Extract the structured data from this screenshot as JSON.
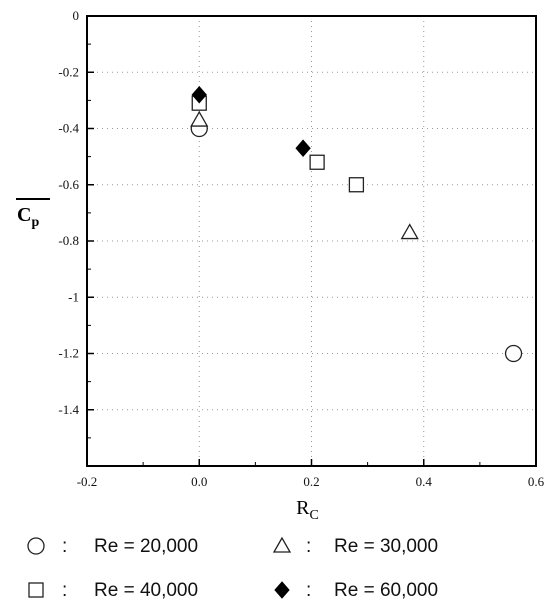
{
  "chart_data": {
    "type": "scatter",
    "xlabel": "R",
    "xlabel_sub": "C",
    "ylabel": "C",
    "ylabel_sub": "p",
    "xlim": [
      -0.2,
      0.6
    ],
    "ylim": [
      -1.6,
      0
    ],
    "x_ticks": [
      -0.2,
      0.0,
      0.2,
      0.4,
      0.6
    ],
    "x_tick_labels": [
      "-0.2",
      "0.0",
      "0.2",
      "0.4",
      "0.6"
    ],
    "y_ticks": [
      0,
      -0.2,
      -0.4,
      -0.6,
      -0.8,
      -1,
      -1.2,
      -1.4
    ],
    "y_tick_labels": [
      "0",
      "-0.2",
      "-0.4",
      "-0.6",
      "-0.8",
      "-1",
      "-1.2",
      "-1.4"
    ],
    "grid": true,
    "legend_position": "bottom",
    "series": [
      {
        "name": "Re = 20,000",
        "marker": "circle",
        "x": [
          0.0,
          0.56
        ],
        "y": [
          -0.4,
          -1.2
        ]
      },
      {
        "name": "Re = 30,000",
        "marker": "triangle",
        "x": [
          0.0,
          0.375
        ],
        "y": [
          -0.37,
          -0.77
        ]
      },
      {
        "name": "Re = 40,000",
        "marker": "square",
        "x": [
          0.0,
          0.21,
          0.28
        ],
        "y": [
          -0.31,
          -0.52,
          -0.6
        ]
      },
      {
        "name": "Re = 60,000",
        "marker": "diamond-filled",
        "x": [
          0.0,
          0.185
        ],
        "y": [
          -0.28,
          -0.47
        ]
      }
    ],
    "legend_separator": ":"
  }
}
